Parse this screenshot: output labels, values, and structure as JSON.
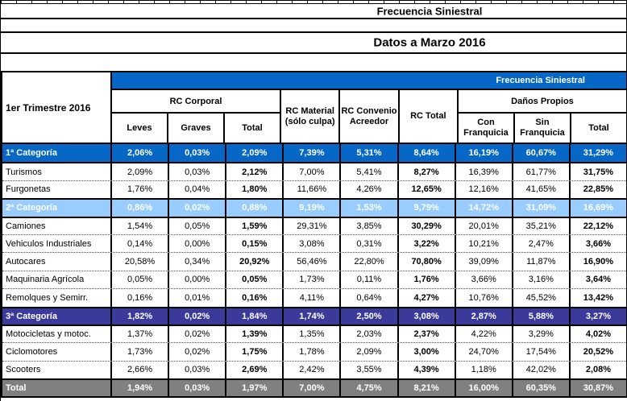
{
  "titles": {
    "main": "Frecuencia Siniestral",
    "sub": "Datos a Marzo 2016"
  },
  "colors": {
    "header_blue": "#0667C6",
    "cat1_blue": "#0667C6",
    "cat2_light_blue": "#99CCFF",
    "cat3_indigo": "#3A3A9B",
    "total_gray": "#808080"
  },
  "table": {
    "corner_label": "1er Trimestre 2016",
    "band_label": "Frecuencia Siniestral",
    "groups": [
      {
        "label": "RC Corporal",
        "cols": [
          "Leves",
          "Graves",
          "Total"
        ]
      },
      {
        "label": "RC Material (sólo culpa)"
      },
      {
        "label": "RC Convenio Acreedor"
      },
      {
        "label": "RC Total"
      },
      {
        "label": "Daños Propios",
        "cols": [
          "Con Franquicia",
          "Sin Franquicia",
          "Total"
        ]
      }
    ],
    "rows": [
      {
        "label": "1ª Categoría",
        "type": "cat1",
        "values": [
          "2,06%",
          "0,03%",
          "2,09%",
          "7,39%",
          "5,31%",
          "8,64%",
          "16,19%",
          "60,67%",
          "31,29%"
        ]
      },
      {
        "label": "Turismos",
        "values": [
          "2,09%",
          "0,03%",
          "2,12%",
          "7,00%",
          "5,41%",
          "8,27%",
          "16,39%",
          "61,77%",
          "31,75%"
        ]
      },
      {
        "label": "Furgonetas",
        "values": [
          "1,76%",
          "0,04%",
          "1,80%",
          "11,66%",
          "4,26%",
          "12,65%",
          "12,16%",
          "41,65%",
          "22,85%"
        ]
      },
      {
        "label": "2ª Categoría",
        "type": "cat2",
        "values": [
          "0,86%",
          "0,02%",
          "0,88%",
          "9,19%",
          "1,53%",
          "9,79%",
          "14,72%",
          "31,09%",
          "16,69%"
        ]
      },
      {
        "label": "Camiones",
        "values": [
          "1,54%",
          "0,05%",
          "1,59%",
          "29,31%",
          "3,85%",
          "30,29%",
          "20,01%",
          "35,21%",
          "22,12%"
        ]
      },
      {
        "label": "Vehiculos Industriales",
        "values": [
          "0,14%",
          "0,00%",
          "0,15%",
          "3,08%",
          "0,31%",
          "3,22%",
          "10,21%",
          "2,47%",
          "3,66%"
        ]
      },
      {
        "label": "Autocares",
        "values": [
          "20,58%",
          "0,34%",
          "20,92%",
          "56,46%",
          "22,80%",
          "70,80%",
          "39,09%",
          "11,87%",
          "16,90%"
        ]
      },
      {
        "label": "Maquinaria Agrícola",
        "values": [
          "0,05%",
          "0,00%",
          "0,05%",
          "1,73%",
          "0,11%",
          "1,76%",
          "3,66%",
          "3,16%",
          "3,64%"
        ]
      },
      {
        "label": "Remolques y Semirr.",
        "values": [
          "0,16%",
          "0,01%",
          "0,16%",
          "4,11%",
          "0,64%",
          "4,27%",
          "10,76%",
          "45,52%",
          "13,42%"
        ]
      },
      {
        "label": "3ª Categoría",
        "type": "cat3",
        "values": [
          "1,82%",
          "0,02%",
          "1,84%",
          "1,74%",
          "2,50%",
          "3,08%",
          "2,87%",
          "5,88%",
          "3,27%"
        ]
      },
      {
        "label": "Motocicletas y motoc.",
        "values": [
          "1,37%",
          "0,02%",
          "1,39%",
          "1,35%",
          "2,03%",
          "2,37%",
          "4,22%",
          "3,29%",
          "4,02%"
        ]
      },
      {
        "label": "Ciclomotores",
        "values": [
          "1,73%",
          "0,02%",
          "1,75%",
          "1,78%",
          "2,09%",
          "3,00%",
          "24,70%",
          "17,54%",
          "20,52%"
        ]
      },
      {
        "label": "Scooters",
        "values": [
          "2,66%",
          "0,03%",
          "2,69%",
          "2,42%",
          "3,55%",
          "4,39%",
          "1,18%",
          "42,02%",
          "2,08%"
        ]
      },
      {
        "label": "Total",
        "type": "total",
        "values": [
          "1,94%",
          "0,03%",
          "1,97%",
          "7,00%",
          "4,75%",
          "8,21%",
          "16,00%",
          "60,35%",
          "30,87%"
        ]
      }
    ]
  }
}
